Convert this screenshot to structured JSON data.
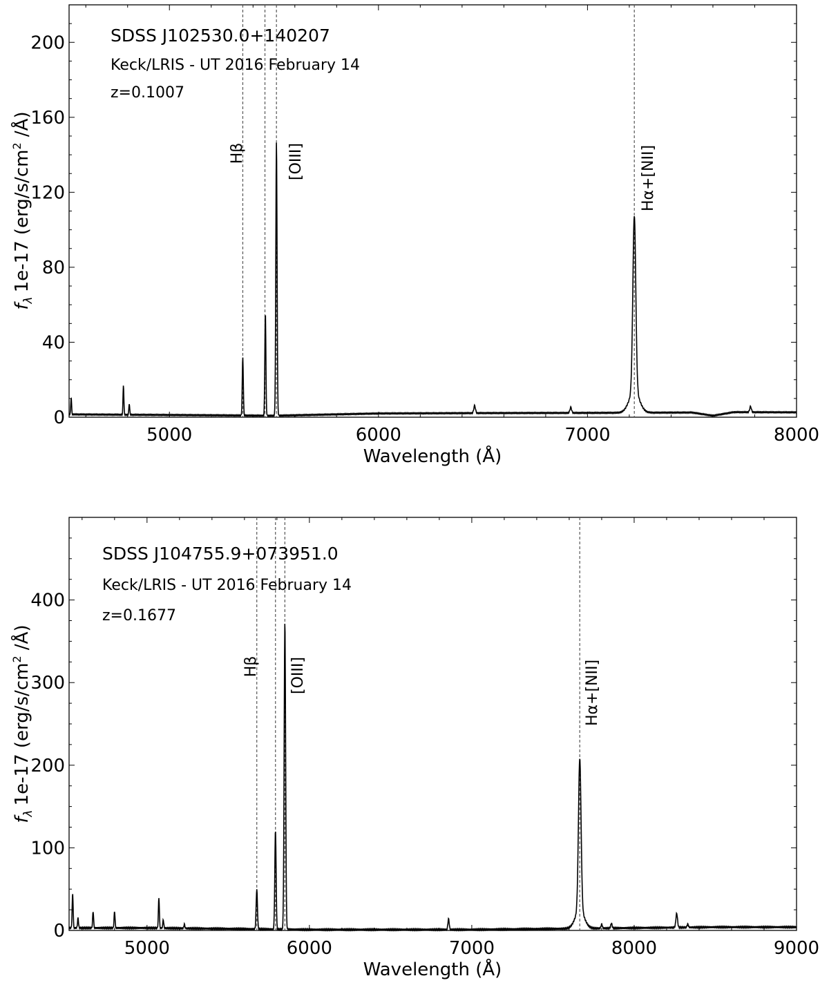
{
  "chart_data": [
    {
      "type": "line",
      "title": "",
      "xlabel": "Wavelength (Å)",
      "ylabel": "f_λ 1e-17 (erg/s/cm^2 /Å)",
      "ylabel_parts": {
        "f": "f",
        "lambda": "λ",
        "main": "1e-17 (erg/s/cm",
        "sup": "2",
        "tail": " /Å)"
      },
      "xlim": [
        4520,
        8000
      ],
      "ylim": [
        0,
        220
      ],
      "xticks": [
        5000,
        6000,
        7000,
        8000
      ],
      "yticks": [
        0,
        40,
        80,
        120,
        160,
        200
      ],
      "grid": false,
      "annotations": {
        "object": "SDSS J102530.0+140207",
        "instrument": "Keck/LRIS - UT 2016 February 14",
        "redshift": "z=0.1007"
      },
      "line_markers": [
        {
          "x": 5351,
          "label": "Hβ"
        },
        {
          "x": 5457,
          "label": ""
        },
        {
          "x": 5512,
          "label": "[OIII]"
        },
        {
          "x": 7224,
          "label": "Hα+[NII]"
        }
      ],
      "series": [
        {
          "continuum": [
            [
              4520,
              1.5
            ],
            [
              5000,
              1.2
            ],
            [
              5500,
              0.8
            ],
            [
              6000,
              2.0
            ],
            [
              6500,
              2.2
            ],
            [
              7000,
              2.3
            ],
            [
              7500,
              2.5
            ],
            [
              7600,
              0.8
            ],
            [
              7700,
              2.7
            ],
            [
              8000,
              2.6
            ]
          ],
          "lines": [
            {
              "x": 4530,
              "peak": 9,
              "width": 2
            },
            {
              "x": 4780,
              "peak": 16,
              "width": 2
            },
            {
              "x": 4808,
              "peak": 6,
              "width": 2
            },
            {
              "x": 5351,
              "peak": 31,
              "width": 2.5
            },
            {
              "x": 5459,
              "peak": 55,
              "width": 2.5
            },
            {
              "x": 5512,
              "peak": 146,
              "width": 3
            },
            {
              "x": 6460,
              "peak": 4,
              "width": 4
            },
            {
              "x": 6920,
              "peak": 3,
              "width": 4
            },
            {
              "x": 7224,
              "peak": 94,
              "width": 7
            },
            {
              "x": 7780,
              "peak": 3,
              "width": 4
            }
          ]
        }
      ]
    },
    {
      "type": "line",
      "title": "",
      "xlabel": "Wavelength (Å)",
      "ylabel": "f_λ 1e-17 (erg/s/cm^2 /Å)",
      "ylabel_parts": {
        "f": "f",
        "lambda": "λ",
        "main": "1e-17 (erg/s/cm",
        "sup": "2",
        "tail": " /Å)"
      },
      "xlim": [
        4520,
        9000
      ],
      "ylim": [
        0,
        500
      ],
      "xticks": [
        5000,
        6000,
        7000,
        8000,
        9000
      ],
      "yticks": [
        0,
        100,
        200,
        300,
        400
      ],
      "grid": false,
      "annotations": {
        "object": "SDSS J104755.9+073951.0",
        "instrument": "Keck/LRIS - UT 2016 February 14",
        "redshift": "z=0.1677"
      },
      "line_markers": [
        {
          "x": 5676,
          "label": "Hβ"
        },
        {
          "x": 5791,
          "label": ""
        },
        {
          "x": 5849,
          "label": "[OIII]"
        },
        {
          "x": 7665,
          "label": "Hα+[NII]"
        }
      ],
      "series": [
        {
          "continuum": [
            [
              4520,
              3
            ],
            [
              5000,
              3
            ],
            [
              5500,
              2
            ],
            [
              6000,
              1
            ],
            [
              6500,
              1
            ],
            [
              7000,
              1
            ],
            [
              7500,
              2
            ],
            [
              8000,
              3
            ],
            [
              8500,
              4
            ],
            [
              9000,
              4
            ]
          ],
          "lines": [
            {
              "x": 4542,
              "peak": 42,
              "width": 3
            },
            {
              "x": 4575,
              "peak": 12,
              "width": 3
            },
            {
              "x": 4668,
              "peak": 20,
              "width": 3
            },
            {
              "x": 4800,
              "peak": 20,
              "width": 3
            },
            {
              "x": 5073,
              "peak": 37,
              "width": 3
            },
            {
              "x": 5100,
              "peak": 10,
              "width": 3
            },
            {
              "x": 5230,
              "peak": 5,
              "width": 3
            },
            {
              "x": 5676,
              "peak": 48,
              "width": 4
            },
            {
              "x": 5791,
              "peak": 120,
              "width": 4
            },
            {
              "x": 5849,
              "peak": 373,
              "width": 4.5
            },
            {
              "x": 6857,
              "peak": 13,
              "width": 4
            },
            {
              "x": 7665,
              "peak": 184,
              "width": 8
            },
            {
              "x": 7800,
              "peak": 5,
              "width": 4
            },
            {
              "x": 7860,
              "peak": 6,
              "width": 4
            },
            {
              "x": 8262,
              "peak": 17,
              "width": 5
            },
            {
              "x": 8330,
              "peak": 4,
              "width": 4
            }
          ]
        }
      ]
    }
  ]
}
